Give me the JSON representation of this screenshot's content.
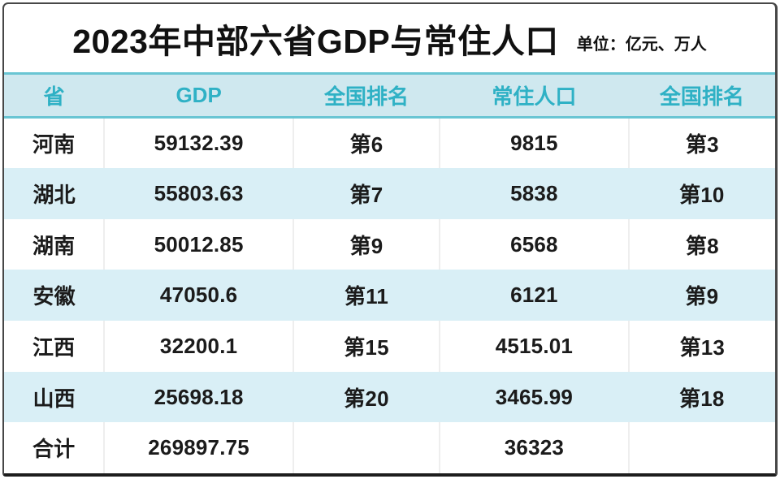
{
  "title": "2023年中部六省GDP与常住人口",
  "unit_note": "单位：亿元、万人",
  "chart_data": {
    "type": "table",
    "title": "2023年中部六省GDP与常住人口",
    "unit": "单位：亿元、万人",
    "columns": [
      "省",
      "GDP",
      "全国排名",
      "常住人口",
      "全国排名"
    ],
    "rows": [
      [
        "河南",
        "59132.39",
        "第6",
        "9815",
        "第3"
      ],
      [
        "湖北",
        "55803.63",
        "第7",
        "5838",
        "第10"
      ],
      [
        "湖南",
        "50012.85",
        "第9",
        "6568",
        "第8"
      ],
      [
        "安徽",
        "47050.6",
        "第11",
        "6121",
        "第9"
      ],
      [
        "江西",
        "32200.1",
        "第15",
        "4515.01",
        "第13"
      ],
      [
        "山西",
        "25698.18",
        "第20",
        "3465.99",
        "第18"
      ],
      [
        "合计",
        "269897.75",
        "",
        "36323",
        ""
      ]
    ],
    "gdp_unit": "亿元",
    "population_unit": "万人",
    "layout": {
      "zebra_striping": true,
      "totals_row_index": 6
    }
  },
  "colors": {
    "header_bg": "#cfe8ef",
    "header_text": "#2fb1c5",
    "header_border": "#69c5d3",
    "row_alt_bg": "#d9eff6",
    "body_text": "#1b1b1b",
    "card_border": "#474747"
  }
}
